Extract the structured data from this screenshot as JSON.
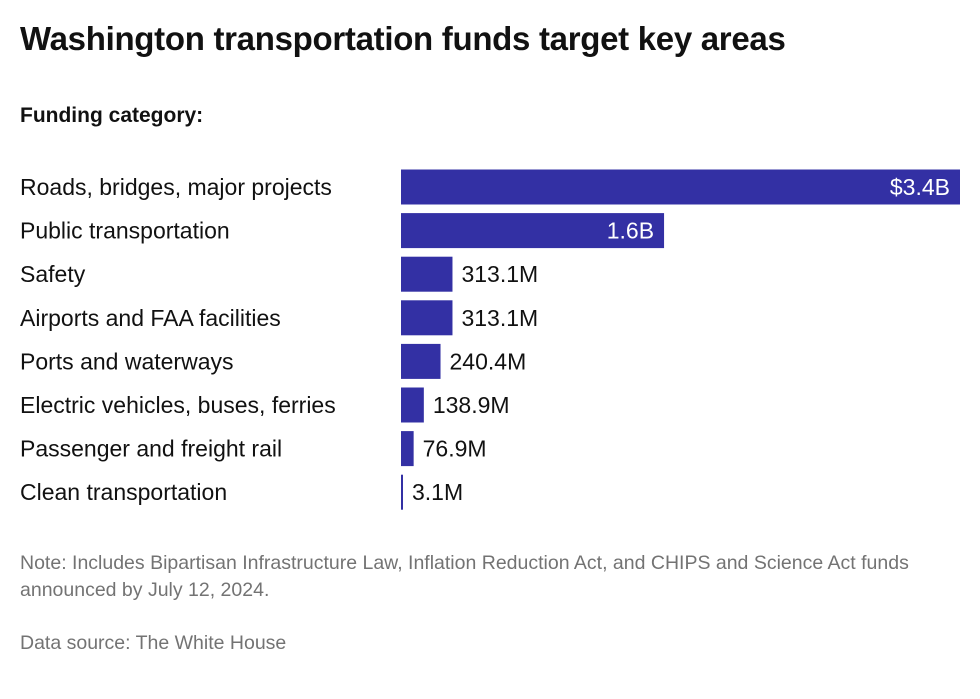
{
  "title": "Washington transportation funds target key areas",
  "subtitle": "Funding category:",
  "note": "Note: Includes Bipartisan Infrastructure Law, Inflation Reduction Act, and CHIPS and Science Act funds announced by July 12, 2024.",
  "source": "Data source: The White House",
  "colors": {
    "bar": "#3330a4",
    "label_inside": "#ffffff",
    "label_outside": "#111111"
  },
  "chart_data": {
    "type": "bar",
    "orientation": "horizontal",
    "categories": [
      "Roads, bridges, major projects",
      "Public transportation",
      "Safety",
      "Airports and FAA facilities",
      "Ports and waterways",
      "Electric vehicles, buses, ferries",
      "Passenger and freight rail",
      "Clean transportation"
    ],
    "values": [
      3400000000,
      1600000000,
      313100000,
      313100000,
      240400000,
      138900000,
      76900000,
      3100000
    ],
    "value_labels": [
      "$3.4B",
      "1.6B",
      "313.1M",
      "313.1M",
      "240.4M",
      "138.9M",
      "76.9M",
      "3.1M"
    ],
    "xlim": [
      0,
      3400000000
    ],
    "grid": false,
    "legend": "none"
  }
}
